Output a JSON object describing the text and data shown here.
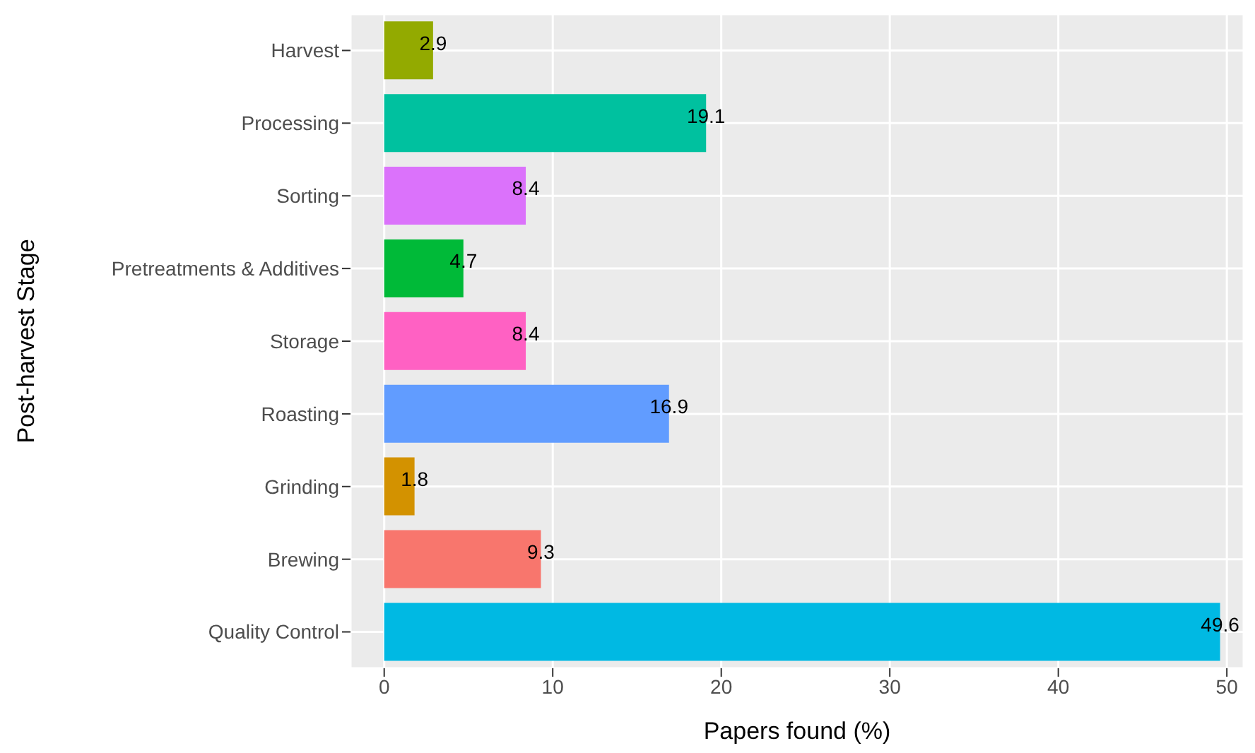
{
  "chart_data": {
    "type": "bar",
    "orientation": "horizontal",
    "xlabel": "Papers found (%)",
    "ylabel": "Post-harvest Stage",
    "categories": [
      "Harvest",
      "Processing",
      "Sorting",
      "Pretreatments & Additives",
      "Storage",
      "Roasting",
      "Grinding",
      "Brewing",
      "Quality Control"
    ],
    "values": [
      2.9,
      19.1,
      8.4,
      4.7,
      8.4,
      16.9,
      1.8,
      9.3,
      49.6
    ],
    "colors": [
      "#93AA00",
      "#00C19F",
      "#DB72FB",
      "#00BA38",
      "#FF61C3",
      "#619CFF",
      "#D39200",
      "#F8766D",
      "#00B9E3"
    ],
    "xlim": [
      -2,
      51
    ],
    "xticks": [
      0,
      10,
      20,
      30,
      40,
      50
    ],
    "grid": true,
    "data_labels": true,
    "legend": false
  }
}
